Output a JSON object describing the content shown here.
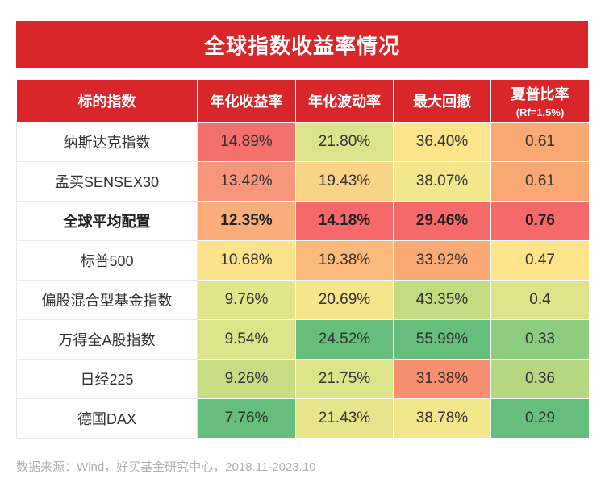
{
  "title": "全球指数收益率情况",
  "header": {
    "col_index": "标的指数",
    "col_return": "年化收益率",
    "col_volatility": "年化波动率",
    "col_drawdown": "最大回撤",
    "col_sharpe": "夏普比率",
    "col_sharpe_sub": "(Rf=1.5%)"
  },
  "rows": [
    {
      "name": "纳斯达克指数",
      "return": "14.89%",
      "volatility": "21.80%",
      "drawdown": "36.40%",
      "sharpe": "0.61",
      "colors": [
        "#f4706d",
        "#dbe38d",
        "#fbe48a",
        "#f8a872"
      ]
    },
    {
      "name": "孟买SENSEX30",
      "return": "13.42%",
      "volatility": "19.43%",
      "drawdown": "38.07%",
      "sharpe": "0.61",
      "colors": [
        "#f7967a",
        "#fad486",
        "#f3e78b",
        "#f8a872"
      ]
    },
    {
      "name": "全球平均配置",
      "return": "12.35%",
      "volatility": "14.18%",
      "drawdown": "29.46%",
      "sharpe": "0.76",
      "colors": [
        "#f9ae7a",
        "#f6696b",
        "#f6696b",
        "#f6696b"
      ],
      "bold": true
    },
    {
      "name": "标普500",
      "return": "10.68%",
      "volatility": "19.38%",
      "drawdown": "33.92%",
      "sharpe": "0.47",
      "colors": [
        "#fde28c",
        "#f9ba7c",
        "#f8a974",
        "#fde38a"
      ]
    },
    {
      "name": "偏股混合型基金指数",
      "return": "9.76%",
      "volatility": "20.69%",
      "drawdown": "43.35%",
      "sharpe": "0.4",
      "colors": [
        "#e3e58a",
        "#f6e58b",
        "#c2dc82",
        "#dee38a"
      ]
    },
    {
      "name": "万得全A股指数",
      "return": "9.54%",
      "volatility": "24.52%",
      "drawdown": "55.99%",
      "sharpe": "0.33",
      "colors": [
        "#dce38a",
        "#65be7b",
        "#65be7b",
        "#8dcc7e"
      ]
    },
    {
      "name": "日经225",
      "return": "9.26%",
      "volatility": "21.75%",
      "drawdown": "31.38%",
      "sharpe": "0.36",
      "colors": [
        "#c8dc84",
        "#dde38a",
        "#f8906f",
        "#b6d682"
      ]
    },
    {
      "name": "德国DAX",
      "return": "7.76%",
      "volatility": "21.43%",
      "drawdown": "38.78%",
      "sharpe": "0.29",
      "colors": [
        "#65be7b",
        "#e6e58b",
        "#f3e78b",
        "#65be7b"
      ]
    }
  ],
  "source": "数据来源：Wind，好买基金研究中心，2018.11-2023.10"
}
